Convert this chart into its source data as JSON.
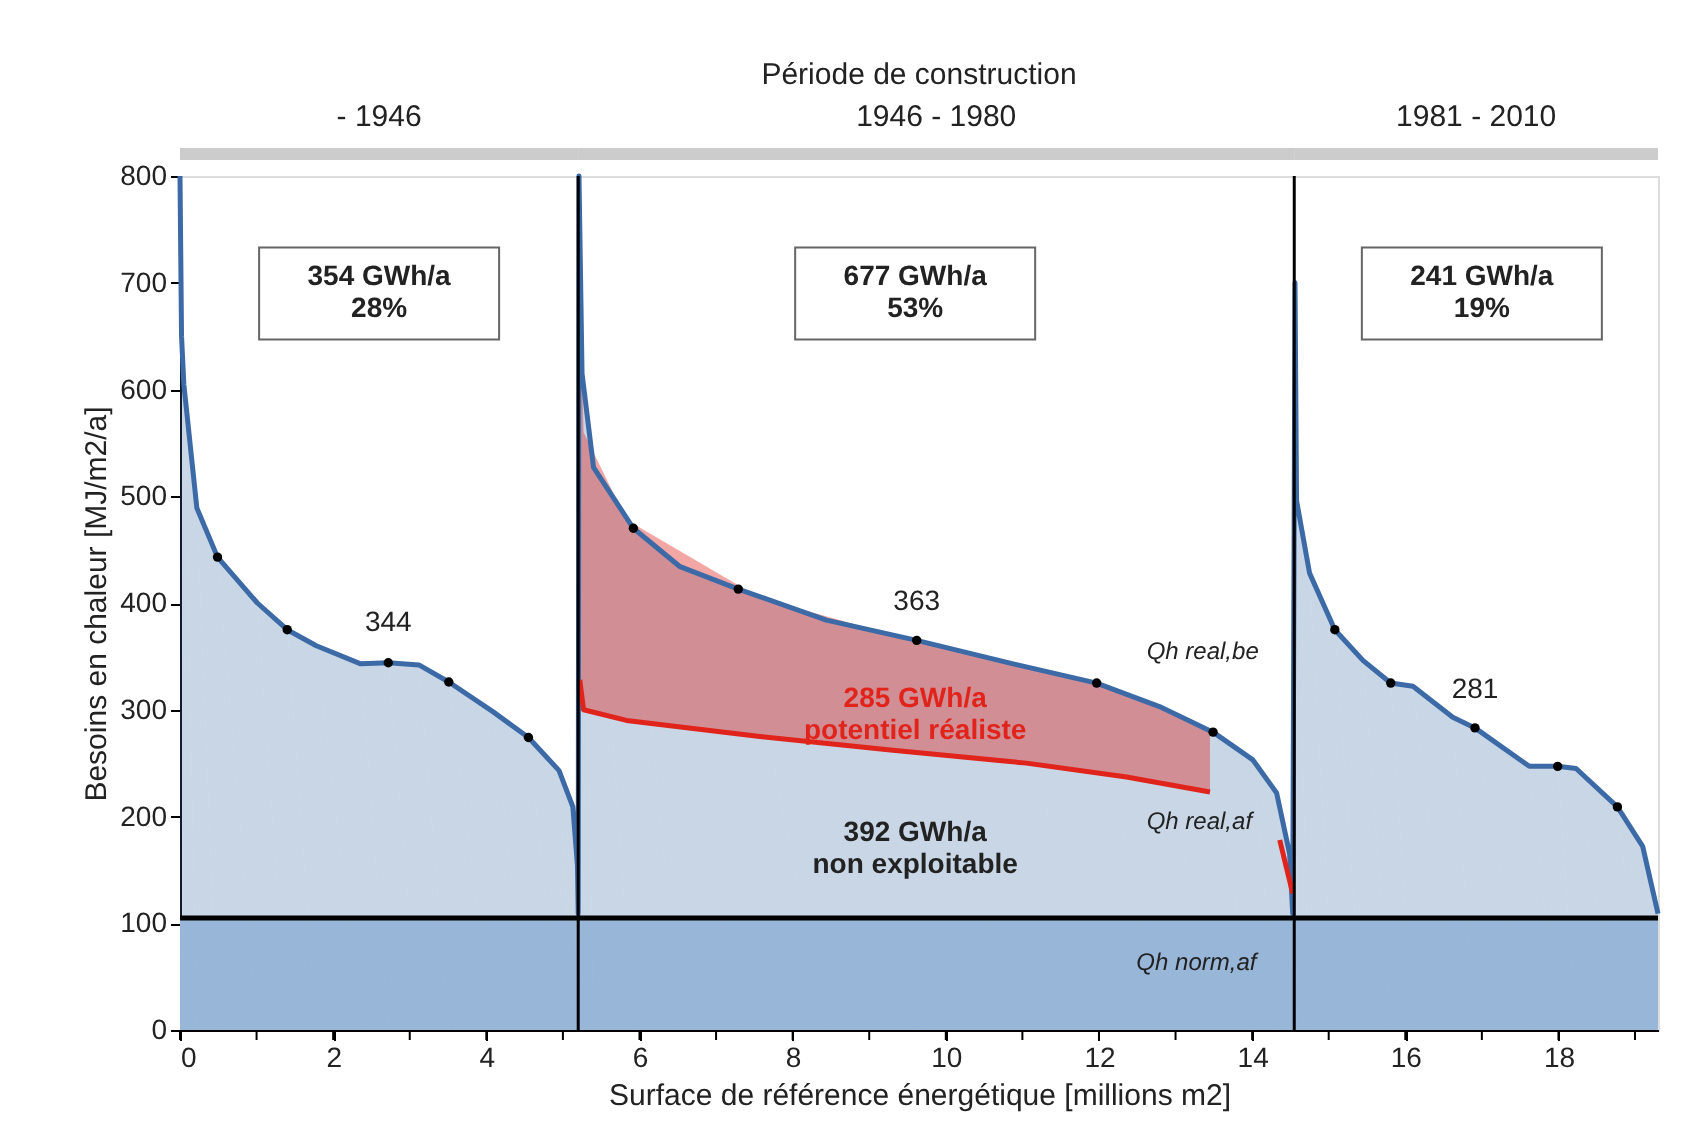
{
  "chart_data": {
    "type": "area",
    "title": "Période de construction",
    "xlabel": "Surface de référence énergétique [millions m2]",
    "ylabel": "Besoins en chaleur [MJ/m2/a]",
    "xlim": [
      0,
      19.3
    ],
    "ylim": [
      0,
      800
    ],
    "xticks": [
      0,
      {
        "value": 1,
        "label": null
      },
      2,
      {
        "value": 3,
        "label": null
      },
      4,
      {
        "value": 5,
        "label": null
      },
      6,
      {
        "value": 7,
        "label": null
      },
      8,
      {
        "value": 9,
        "label": null
      },
      10,
      {
        "value": 11,
        "label": null
      },
      12,
      {
        "value": 13,
        "label": null
      },
      14,
      {
        "value": 15,
        "label": null
      },
      16,
      {
        "value": 17,
        "label": null
      },
      18,
      {
        "value": 19,
        "label": null
      }
    ],
    "yticks": [
      0,
      100,
      200,
      300,
      400,
      500,
      600,
      700,
      800
    ],
    "grid": false,
    "series": [
      {
        "color": "#3b6aa6",
        "x": [
          0,
          0.02,
          0.05,
          0.22,
          0.49,
          1.01,
          1.4,
          1.78,
          2.36,
          2.72,
          3.12,
          3.51,
          4.09,
          4.55,
          4.95,
          5.13,
          5.19,
          5.2,
          5.21,
          5.25,
          5.4,
          5.92,
          6.53,
          7.29,
          8.44,
          9.62,
          10.88,
          11.97,
          12.79,
          13.49,
          14.01,
          14.32,
          14.49,
          14.53,
          14.56,
          14.58,
          14.75,
          15.08,
          15.45,
          15.81,
          16.1,
          16.62,
          16.91,
          17.62,
          17.99,
          18.23,
          18.77,
          19.1,
          19.3
        ],
        "values": [
          800,
          650,
          605,
          489,
          443,
          400,
          375,
          360,
          343,
          344,
          342,
          326,
          298,
          274,
          243,
          209,
          154,
          109,
          800,
          615,
          527,
          470,
          434,
          413,
          384,
          365,
          343,
          325,
          303,
          279,
          253,
          222,
          165,
          109,
          700,
          496,
          428,
          375,
          346,
          325,
          322,
          293,
          283,
          247,
          247,
          245,
          209,
          172,
          109
        ]
      },
      {
        "type": "line",
        "color": "#e0241b",
        "x": [
          5.22,
          5.27,
          5.83,
          7.57,
          9.31,
          11.05,
          12.36,
          13.45
        ],
        "values": [
          328,
          300,
          290,
          275,
          262,
          250,
          237,
          223
        ],
        "lower": [
          328,
          300,
          290,
          275,
          262,
          250,
          237,
          223
        ],
        "upper": [
          700,
          560,
          478,
          405,
          370,
          340,
          316,
          280
        ]
      },
      {
        "type": "line",
        "color": "#e0241b",
        "x": [
          14.36,
          14.53
        ],
        "values": [
          178,
          128
        ]
      },
      {
        "type": "scatter",
        "color": "#000000",
        "marker": "circle",
        "x": [
          0.49,
          1.4,
          2.72,
          3.51,
          4.55,
          5.92,
          7.29,
          9.62,
          11.97,
          13.49,
          15.08,
          15.81,
          16.91,
          17.99,
          18.77
        ],
        "values": [
          443,
          375,
          344,
          326,
          274,
          470,
          413,
          365,
          325,
          279,
          375,
          325,
          283,
          247,
          209
        ]
      }
    ],
    "ref_lines": [
      {
        "axis": "y",
        "value": 105,
        "label": "Qh norm,af",
        "color": "#000000"
      },
      {
        "axis": "x",
        "value": 5.2,
        "color": "#000000"
      },
      {
        "axis": "x",
        "value": 14.55,
        "color": "#000000"
      }
    ],
    "bands": [
      {
        "axis": "y",
        "from": 0,
        "to": 105,
        "color": "#bdd3ec"
      }
    ],
    "annotations": [
      "- 1946",
      "1946 - 1980",
      "1981 - 2010",
      "354 GWh/a\n28%",
      "677 GWh/a\n53%",
      "241 GWh/a\n19%",
      "285 GWh/a\npotentiel réaliste",
      "392 GWh/a\nnon exploitable",
      {
        "text": "344",
        "x": 2.72,
        "y": 344
      },
      {
        "text": "363",
        "x": 9.62,
        "y": 363
      },
      {
        "text": "281",
        "x": 16.91,
        "y": 281
      },
      {
        "text": "Qh real,be",
        "x": 11.97,
        "y": 325
      },
      {
        "text": "Qh real,af",
        "x": 11.97,
        "y": 237
      }
    ]
  }
}
